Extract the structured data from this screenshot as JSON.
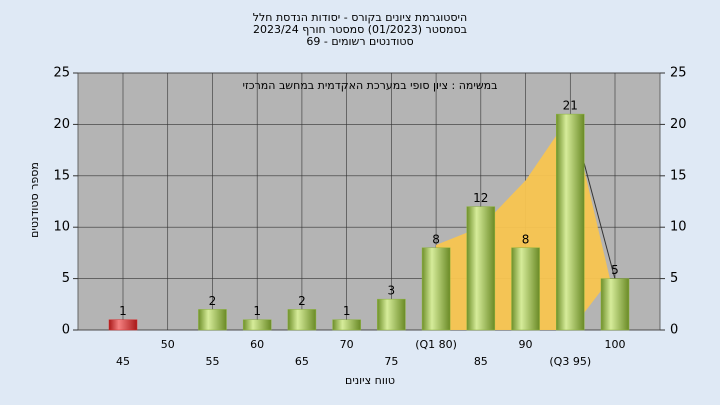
{
  "chart_data": {
    "type": "bar",
    "title": [
      "היסטוגרמת ציונים בקורס - יסודות הנדסת חלל",
      "בסמסטר  (01/2023)  סמסטר חורף 2023/24",
      "סטודנטים רשומים - 69"
    ],
    "annotation": "במשימה : ציון סופי במערכת האקדמית במחשב המרכזי",
    "ylabel": "מספר סטודנטים",
    "xlabel": "טווח ציונים",
    "categories": [
      "45",
      "50",
      "55",
      "60",
      "65",
      "70",
      "75",
      "(Q1 80)",
      "85",
      "90",
      "(Q3 95)",
      "100"
    ],
    "values": [
      1,
      null,
      2,
      1,
      2,
      1,
      3,
      8,
      12,
      8,
      21,
      5
    ],
    "colors": [
      "#d93030",
      "#8cb43c",
      "#8cb43c",
      "#8cb43c",
      "#8cb43c",
      "#8cb43c",
      "#8cb43c",
      "#8cb43c",
      "#8cb43c",
      "#8cb43c",
      "#8cb43c",
      "#8cb43c"
    ],
    "ylim": [
      0,
      25
    ],
    "yticks": [
      0,
      5,
      10,
      15,
      20,
      25
    ],
    "y2lim": [
      0,
      25
    ],
    "y2ticks": [
      0,
      5,
      10,
      15,
      20,
      25
    ],
    "grid": true
  }
}
